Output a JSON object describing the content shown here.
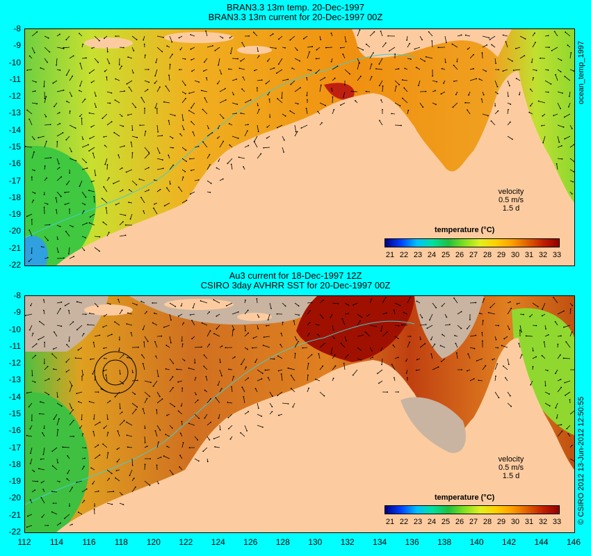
{
  "top_panel": {
    "title_line1": "BRAN3.3 13m temp. 20-Dec-1997",
    "title_line2": "BRAN3.3 13m current for 20-Dec-1997 00Z",
    "velocity_label": "velocity",
    "velocity_scale": "0.5 m/s",
    "velocity_time": "1.5 d",
    "colorbar_title": "temperature (°C)",
    "side_label": "ocean_temp_1997"
  },
  "bottom_panel": {
    "title_line1": "Au3 current for 18-Dec-1997 12Z",
    "title_line2": "CSIRO 3day AVHRR SST for 20-Dec-1997 00Z",
    "velocity_label": "velocity",
    "velocity_scale": "0.5 m/s",
    "velocity_time": "1.5 d",
    "colorbar_title": "temperature (°C)",
    "side_label": "© CSIRO 2012  13-Jun-2012 12:50:55"
  },
  "axes": {
    "lat_ticks": [
      "-8",
      "-9",
      "-10",
      "-11",
      "-12",
      "-13",
      "-14",
      "-15",
      "-16",
      "-17",
      "-18",
      "-19",
      "-20",
      "-21",
      "-22"
    ],
    "lon_ticks": [
      "112",
      "114",
      "116",
      "118",
      "120",
      "122",
      "124",
      "126",
      "128",
      "130",
      "132",
      "134",
      "136",
      "138",
      "140",
      "142",
      "144",
      "146"
    ],
    "colorbar_ticks": [
      "21",
      "22",
      "23",
      "24",
      "25",
      "26",
      "27",
      "28",
      "29",
      "30",
      "31",
      "32",
      "33"
    ]
  },
  "colors": {
    "background": "#00ffff",
    "land": "#fccca0",
    "missing_data": "#c8b4a0",
    "coast_line": "#40d0d0"
  }
}
